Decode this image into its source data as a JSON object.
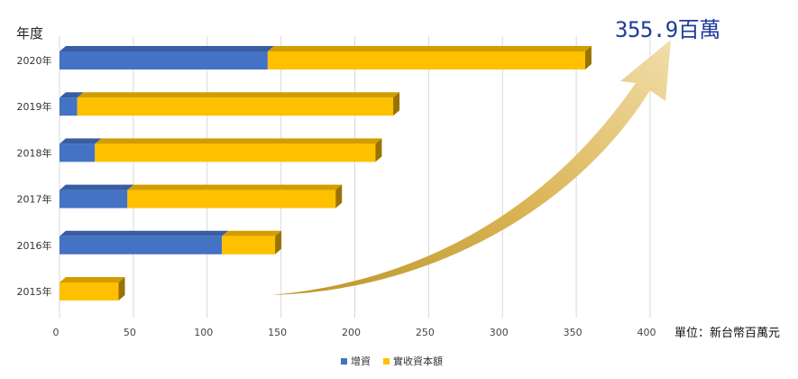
{
  "chart_data": {
    "type": "bar",
    "orientation": "horizontal",
    "stacked": true,
    "style": "3d",
    "categories": [
      "2020年",
      "2019年",
      "2018年",
      "2017年",
      "2016年",
      "2015年"
    ],
    "series": [
      {
        "name": "增資",
        "color": "#4472c4",
        "values": [
          141,
          12,
          24,
          46,
          110,
          0
        ]
      },
      {
        "name": "實收資本額",
        "color": "#ffc000",
        "values": [
          215,
          214,
          190,
          141,
          36,
          40
        ]
      }
    ],
    "xlim": [
      0,
      400
    ],
    "xticks": [
      0,
      50,
      100,
      150,
      200,
      250,
      300,
      350,
      400
    ],
    "grid": true,
    "legend_position": "bottom",
    "ylabel": "年度",
    "annotation": "355.9百萬",
    "unit_label": "單位：新台幣百萬元"
  }
}
